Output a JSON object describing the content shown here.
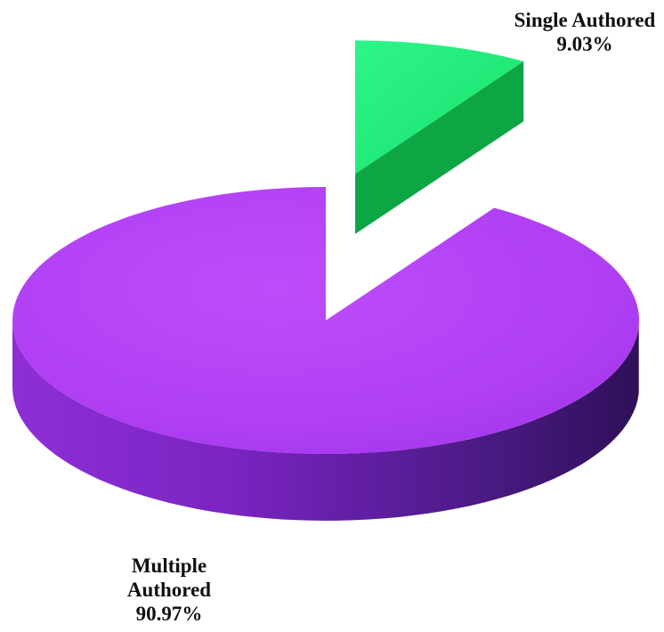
{
  "chart_data": {
    "type": "pie",
    "style": "3d-exploded",
    "title": "",
    "slices": [
      {
        "label_lines": [
          "Single Authored"
        ],
        "value_label": "9.03%",
        "value": 9.03,
        "color": "#22e06a",
        "exploded": true
      },
      {
        "label_lines": [
          "Multiple",
          "Authored"
        ],
        "value_label": "90.97%",
        "value": 90.97,
        "color": "#b13ff5",
        "exploded": false
      }
    ],
    "legend": false
  }
}
